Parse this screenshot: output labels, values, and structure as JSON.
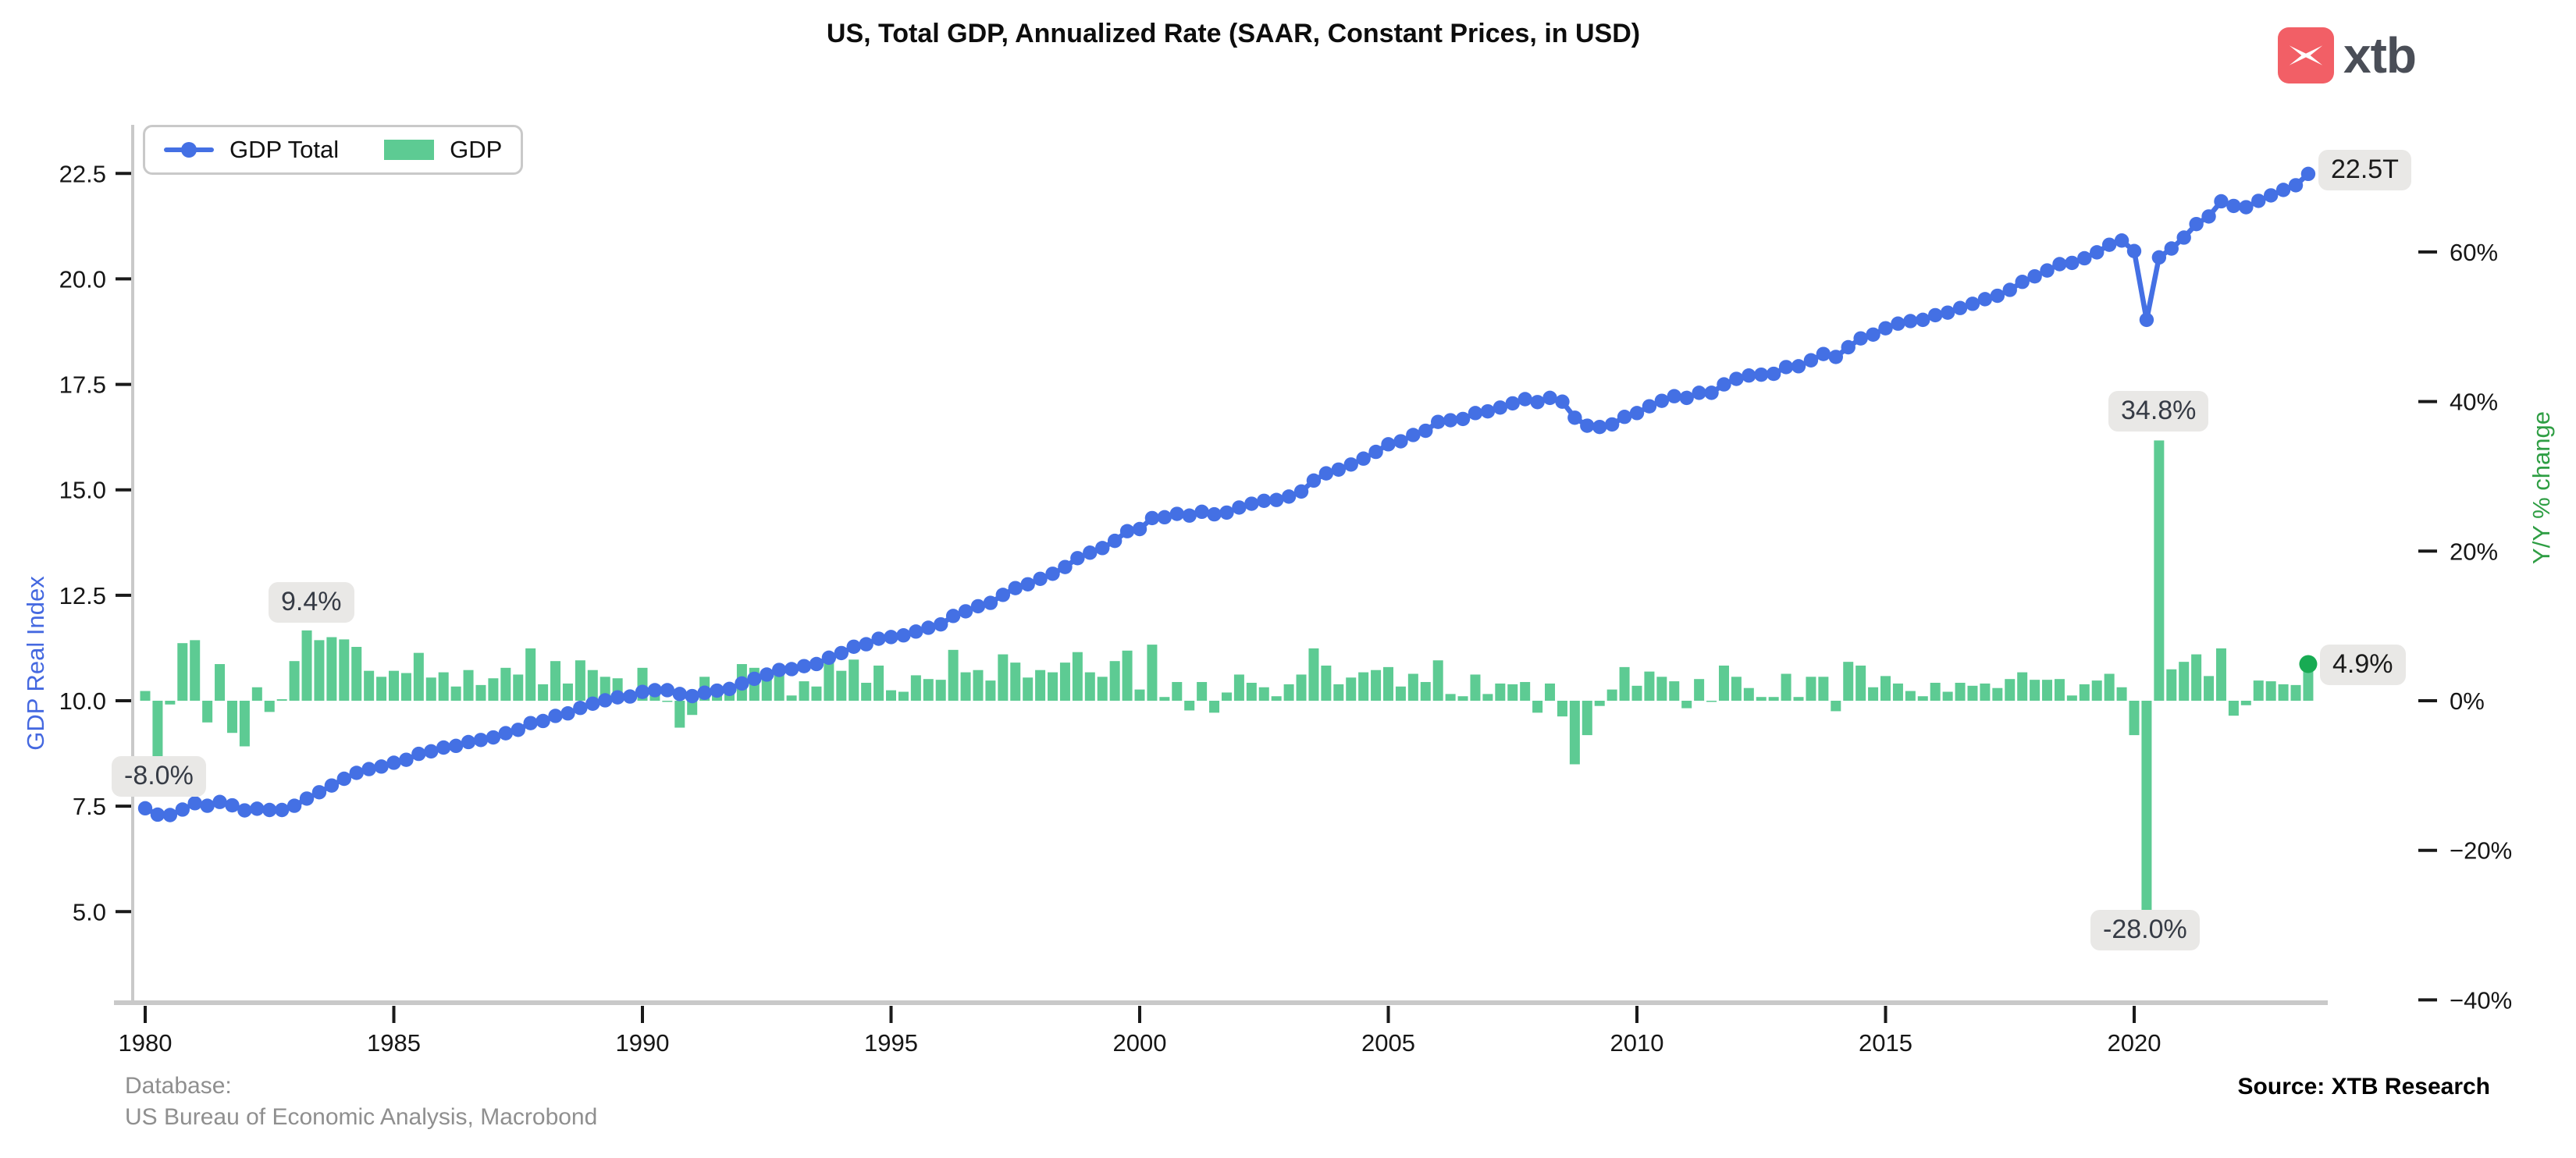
{
  "logo": {
    "text": "xtb",
    "brand_color": "#f25f66",
    "text_color": "#4a4e57"
  },
  "footer": {
    "database_label": "Database:",
    "database_value": "US Bureau of Economic Analysis, Macrobond",
    "source": "Source: XTB Research"
  },
  "chart_data": {
    "type": "line+bar",
    "title": "US, Total GDP, Annualized Rate (SAAR, Constant Prices, in USD)",
    "x_frequency": "quarterly",
    "x_start": "1980Q1",
    "x_end": "2023Q3",
    "x_tick_years": [
      1980,
      1985,
      1990,
      1995,
      2000,
      2005,
      2010,
      2015,
      2020
    ],
    "grid": false,
    "legend_position": "top-left",
    "left_axis": {
      "label": "GDP Real Index",
      "tick_values": [
        22.5,
        20.0,
        17.5,
        15.0,
        12.5,
        10.0,
        7.5,
        5.0
      ],
      "tick_labels": [
        "22.5",
        "20.0",
        "17.5",
        "15.0",
        "12.5",
        "10.0",
        "7.5",
        "5.0"
      ],
      "color": "#4468e0"
    },
    "right_axis": {
      "label": "Y/Y % change",
      "tick_values": [
        60,
        40,
        20,
        0,
        -20,
        -40
      ],
      "tick_labels": [
        "60%",
        "40%",
        "20%",
        "0%",
        "−20%",
        "−40%"
      ],
      "color": "#2f9e44"
    },
    "series": [
      {
        "name": "GDP Total",
        "type": "line",
        "axis": "left",
        "color": "#4470e4",
        "unit": "trillion USD",
        "values": [
          7.45,
          7.3,
          7.29,
          7.42,
          7.57,
          7.51,
          7.6,
          7.52,
          7.4,
          7.44,
          7.41,
          7.41,
          7.51,
          7.68,
          7.83,
          7.99,
          8.15,
          8.29,
          8.38,
          8.44,
          8.53,
          8.6,
          8.74,
          8.8,
          8.89,
          8.93,
          9.02,
          9.07,
          9.13,
          9.23,
          9.31,
          9.47,
          9.52,
          9.64,
          9.7,
          9.83,
          9.93,
          10.01,
          10.08,
          10.1,
          10.21,
          10.25,
          10.25,
          10.16,
          10.11,
          10.19,
          10.24,
          10.28,
          10.41,
          10.52,
          10.62,
          10.73,
          10.75,
          10.82,
          10.87,
          11.02,
          11.13,
          11.28,
          11.34,
          11.47,
          11.51,
          11.55,
          11.64,
          11.73,
          11.81,
          12.01,
          12.12,
          12.24,
          12.32,
          12.51,
          12.67,
          12.76,
          12.89,
          13.01,
          13.17,
          13.38,
          13.51,
          13.62,
          13.79,
          14.02,
          14.07,
          14.33,
          14.35,
          14.43,
          14.39,
          14.48,
          14.42,
          14.46,
          14.58,
          14.67,
          14.74,
          14.76,
          14.84,
          14.96,
          15.22,
          15.39,
          15.48,
          15.6,
          15.74,
          15.9,
          16.08,
          16.15,
          16.3,
          16.4,
          16.61,
          16.65,
          16.68,
          16.82,
          16.86,
          16.95,
          17.05,
          17.15,
          17.08,
          17.18,
          17.09,
          16.71,
          16.52,
          16.49,
          16.55,
          16.73,
          16.82,
          16.98,
          17.11,
          17.22,
          17.18,
          17.3,
          17.3,
          17.5,
          17.63,
          17.71,
          17.73,
          17.75,
          17.91,
          17.93,
          18.07,
          18.22,
          18.15,
          18.38,
          18.59,
          18.68,
          18.83,
          18.94,
          19.0,
          19.03,
          19.14,
          19.2,
          19.31,
          19.41,
          19.52,
          19.6,
          19.74,
          19.93,
          20.06,
          20.2,
          20.35,
          20.38,
          20.49,
          20.63,
          20.81,
          20.91,
          20.66,
          19.03,
          20.51,
          20.72,
          20.98,
          21.3,
          21.48,
          21.84,
          21.73,
          21.7,
          21.85,
          21.98,
          22.11,
          22.22,
          22.49
        ]
      },
      {
        "name": "GDP",
        "type": "bar",
        "axis": "right",
        "color": "#5dcb93",
        "unit": "% SAAR",
        "values": [
          1.3,
          -8.0,
          -0.5,
          7.7,
          8.1,
          -2.9,
          4.9,
          -4.3,
          -6.1,
          1.8,
          -1.5,
          0.2,
          5.3,
          9.4,
          8.1,
          8.5,
          8.2,
          7.2,
          4.0,
          3.2,
          4.0,
          3.7,
          6.4,
          3.1,
          3.8,
          1.9,
          4.1,
          2.1,
          3.0,
          4.4,
          3.5,
          7.0,
          2.2,
          5.3,
          2.3,
          5.4,
          4.1,
          3.2,
          3.0,
          0.9,
          4.4,
          1.5,
          0.0,
          -3.6,
          -1.9,
          3.2,
          1.9,
          1.9,
          4.9,
          4.4,
          4.0,
          4.2,
          0.7,
          2.6,
          1.9,
          5.4,
          4.0,
          5.5,
          2.4,
          4.7,
          1.4,
          1.2,
          3.4,
          2.9,
          2.8,
          6.8,
          3.8,
          4.1,
          2.7,
          6.2,
          5.1,
          3.1,
          4.1,
          3.8,
          5.1,
          6.5,
          3.8,
          3.2,
          5.3,
          6.7,
          1.5,
          7.5,
          0.5,
          2.5,
          -1.3,
          2.5,
          -1.6,
          1.1,
          3.5,
          2.4,
          1.8,
          0.6,
          2.2,
          3.5,
          7.0,
          4.7,
          2.2,
          3.1,
          3.8,
          4.1,
          4.5,
          1.9,
          3.6,
          2.5,
          5.4,
          0.9,
          0.6,
          3.5,
          0.9,
          2.3,
          2.2,
          2.5,
          -1.6,
          2.3,
          -2.1,
          -8.5,
          -4.6,
          -0.7,
          1.5,
          4.5,
          2.0,
          3.9,
          3.2,
          2.6,
          -1.0,
          2.9,
          -0.1,
          4.7,
          3.2,
          1.7,
          0.5,
          0.5,
          3.6,
          0.5,
          3.2,
          3.2,
          -1.4,
          5.2,
          4.7,
          1.8,
          3.3,
          2.3,
          1.3,
          0.6,
          2.4,
          1.2,
          2.4,
          2.0,
          2.3,
          1.7,
          2.9,
          3.8,
          2.8,
          2.8,
          2.9,
          0.7,
          2.2,
          2.7,
          3.6,
          1.8,
          -4.6,
          -28.0,
          34.8,
          4.2,
          5.2,
          6.2,
          3.3,
          7.0,
          -2.0,
          -0.6,
          2.7,
          2.6,
          2.2,
          2.1,
          4.9
        ]
      }
    ],
    "annotations": {
      "gdp_1980q2": "-8.0%",
      "gdp_1983q2": "9.4%",
      "gdp_2020q3": "34.8%",
      "gdp_2020q2": "-28.0%",
      "line_latest": "22.5T",
      "bar_latest": "4.9%"
    },
    "latest_marker_color": "#18ab53"
  }
}
